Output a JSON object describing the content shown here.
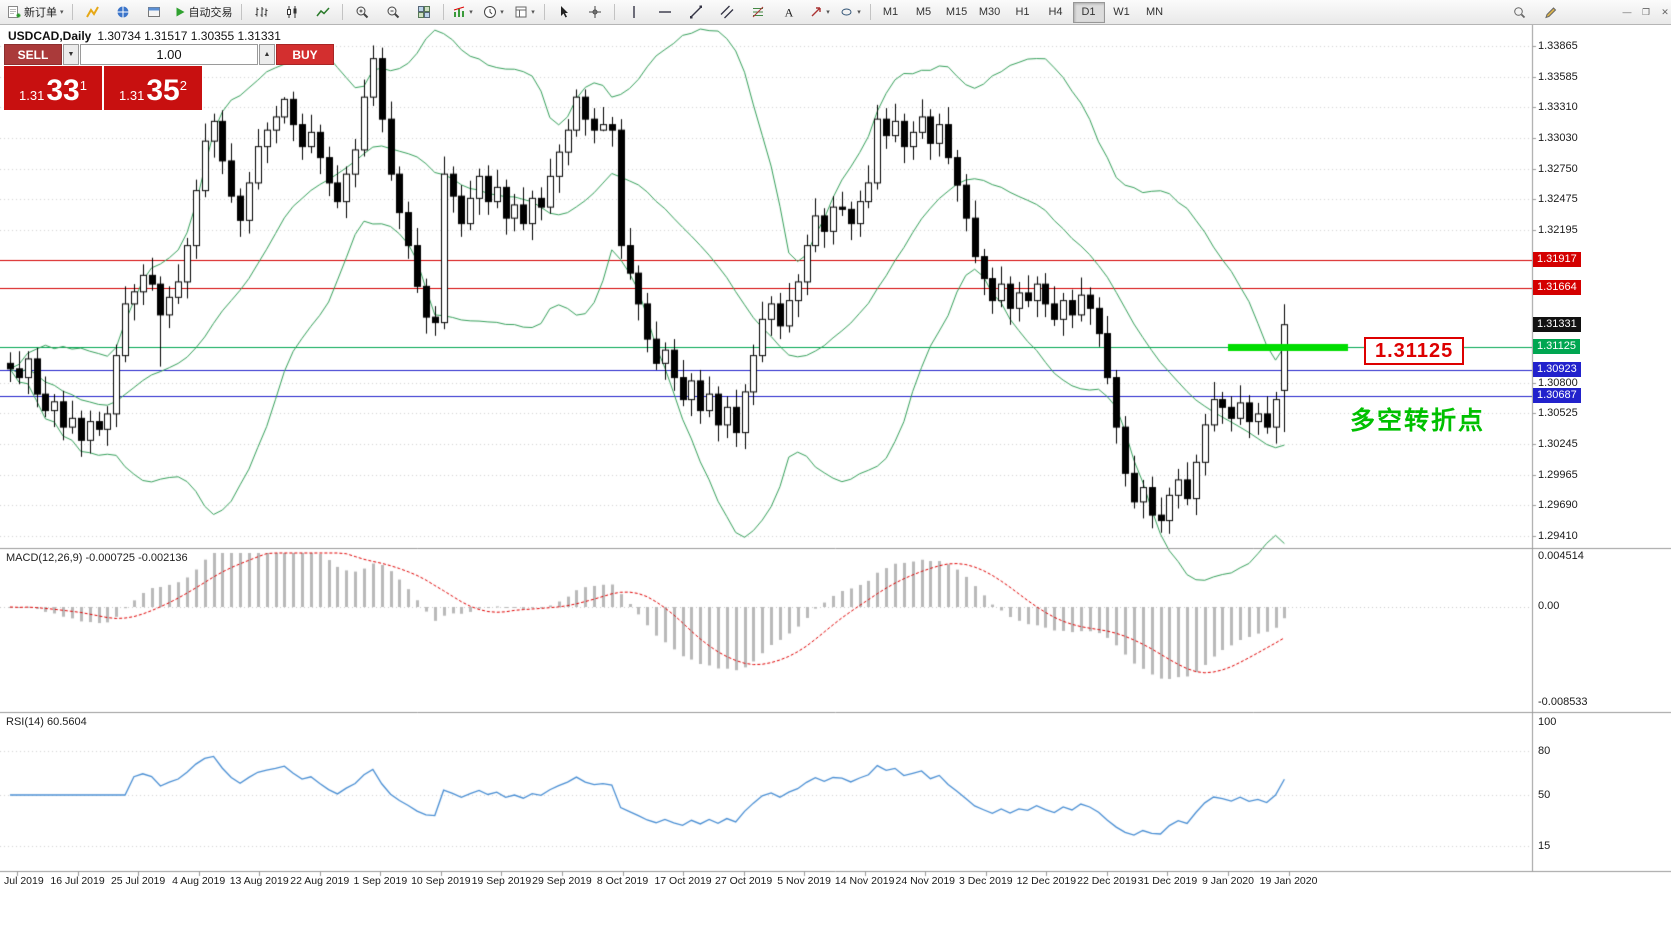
{
  "toolbar": {
    "new_order_label": "新订单",
    "autotrading_label": "自动交易",
    "timeframes": [
      "M1",
      "M5",
      "M15",
      "M30",
      "H1",
      "H4",
      "D1",
      "W1",
      "MN"
    ],
    "active_timeframe": "D1",
    "window_controls": {
      "minimize": "—",
      "restore": "❐",
      "close": "✕"
    }
  },
  "chart": {
    "title_symbol": "USDCAD,Daily",
    "title_ohlc": "1.30734 1.31517 1.30355 1.31331",
    "trade_panel": {
      "sell_label": "SELL",
      "buy_label": "BUY",
      "volume": "1.00",
      "bid_small": "1.31",
      "bid_big": "33",
      "bid_sup": "1",
      "ask_small": "1.31",
      "ask_big": "35",
      "ask_sup": "2"
    },
    "annotations": {
      "level_label": "1.31125",
      "note_text": "多空转折点",
      "highlight_color": "#00dd00",
      "note_color": "#00c000",
      "callout_color": "#dd0000"
    }
  },
  "price_axis": {
    "labels": [
      "1.33865",
      "1.33585",
      "1.33310",
      "1.33030",
      "1.32750",
      "1.32475",
      "1.32195",
      "1.30800",
      "1.30525",
      "1.30245",
      "1.29965",
      "1.29690",
      "1.29410"
    ],
    "tags": [
      {
        "text": "1.31917",
        "color": "#d40000",
        "line": true
      },
      {
        "text": "1.31664",
        "color": "#d40000",
        "line": true
      },
      {
        "text": "1.31331",
        "color": "#111111",
        "line": false
      },
      {
        "text": "1.31125",
        "color": "#00a651",
        "line": true
      },
      {
        "text": "1.30923",
        "color": "#2222cc",
        "line": true
      },
      {
        "text": "1.30687",
        "color": "#2222cc",
        "line": true
      }
    ]
  },
  "macd_panel": {
    "label": "MACD(12,26,9) -0.000725 -0.002136",
    "scale": [
      "0.004514",
      "0.00",
      "-0.008533"
    ]
  },
  "rsi_panel": {
    "label": "RSI(14) 60.5604",
    "scale": [
      "100",
      "80",
      "50",
      "15"
    ]
  },
  "date_axis": [
    "Jul 2019",
    "16 Jul 2019",
    "25 Jul 2019",
    "4 Aug 2019",
    "13 Aug 2019",
    "22 Aug 2019",
    "1 Sep 2019",
    "10 Sep 2019",
    "19 Sep 2019",
    "29 Sep 2019",
    "8 Oct 2019",
    "17 Oct 2019",
    "27 Oct 2019",
    "5 Nov 2019",
    "14 Nov 2019",
    "24 Nov 2019",
    "3 Dec 2019",
    "12 Dec 2019",
    "22 Dec 2019",
    "31 Dec 2019",
    "9 Jan 2020",
    "19 Jan 2020"
  ],
  "chart_data": {
    "type": "candlestick",
    "symbol": "USDCAD",
    "period": "Daily",
    "ohlc_current": {
      "open": 1.30734,
      "high": 1.31517,
      "low": 1.30355,
      "close": 1.31331
    },
    "levels": {
      "resistance": [
        1.31917,
        1.31664
      ],
      "pivot_green": 1.31125,
      "support": [
        1.30923,
        1.30687
      ],
      "current_bid": 1.31331
    },
    "indicators": {
      "bollinger": {
        "period": 20,
        "deviation": 2
      },
      "macd": {
        "fast": 12,
        "slow": 26,
        "signal": 9,
        "current_main": -0.000725,
        "current_signal": -0.002136,
        "scale_top": 0.004514,
        "scale_bottom": -0.008533
      },
      "rsi": {
        "period": 14,
        "current": 60.5604,
        "levels": [
          80,
          50,
          15
        ]
      }
    },
    "price_range_visible": [
      1.2931,
      1.3403
    ],
    "x_tick_labels": [
      "Jul 2019",
      "16 Jul 2019",
      "25 Jul 2019",
      "4 Aug 2019",
      "13 Aug 2019",
      "22 Aug 2019",
      "1 Sep 2019",
      "10 Sep 2019",
      "19 Sep 2019",
      "29 Sep 2019",
      "8 Oct 2019",
      "17 Oct 2019",
      "27 Oct 2019",
      "5 Nov 2019",
      "14 Nov 2019",
      "24 Nov 2019",
      "3 Dec 2019",
      "12 Dec 2019",
      "22 Dec 2019",
      "31 Dec 2019",
      "9 Jan 2020",
      "19 Jan 2020"
    ],
    "candles": [
      [
        1.3098,
        1.3108,
        1.3081,
        1.3093
      ],
      [
        1.3093,
        1.3109,
        1.3079,
        1.3085
      ],
      [
        1.3085,
        1.3109,
        1.307,
        1.3102
      ],
      [
        1.3102,
        1.3112,
        1.3058,
        1.307
      ],
      [
        1.307,
        1.3086,
        1.3049,
        1.3055
      ],
      [
        1.3055,
        1.307,
        1.304,
        1.3063
      ],
      [
        1.3063,
        1.3073,
        1.3028,
        1.304
      ],
      [
        1.304,
        1.3064,
        1.3034,
        1.3048
      ],
      [
        1.3048,
        1.3055,
        1.3013,
        1.3028
      ],
      [
        1.3028,
        1.3055,
        1.3016,
        1.3045
      ],
      [
        1.3045,
        1.3054,
        1.3032,
        1.3038
      ],
      [
        1.3038,
        1.3059,
        1.3023,
        1.3052
      ],
      [
        1.3052,
        1.3115,
        1.304,
        1.3105
      ],
      [
        1.3105,
        1.3168,
        1.3099,
        1.3152
      ],
      [
        1.3152,
        1.317,
        1.3137,
        1.3163
      ],
      [
        1.3163,
        1.3188,
        1.3151,
        1.3178
      ],
      [
        1.3178,
        1.3194,
        1.3164,
        1.317
      ],
      [
        1.317,
        1.3177,
        1.3095,
        1.3142
      ],
      [
        1.3142,
        1.3168,
        1.313,
        1.3158
      ],
      [
        1.3158,
        1.3188,
        1.3152,
        1.3172
      ],
      [
        1.3172,
        1.3212,
        1.3157,
        1.3205
      ],
      [
        1.3205,
        1.3265,
        1.3193,
        1.3255
      ],
      [
        1.3255,
        1.3316,
        1.3249,
        1.33
      ],
      [
        1.33,
        1.3325,
        1.3285,
        1.3318
      ],
      [
        1.3318,
        1.3328,
        1.327,
        1.3282
      ],
      [
        1.3282,
        1.3298,
        1.3244,
        1.325
      ],
      [
        1.325,
        1.3257,
        1.3213,
        1.3228
      ],
      [
        1.3228,
        1.3272,
        1.3216,
        1.3262
      ],
      [
        1.3262,
        1.3311,
        1.3256,
        1.3295
      ],
      [
        1.3295,
        1.3317,
        1.328,
        1.331
      ],
      [
        1.331,
        1.3332,
        1.3298,
        1.3322
      ],
      [
        1.3322,
        1.334,
        1.3316,
        1.3338
      ],
      [
        1.3338,
        1.3345,
        1.33,
        1.3315
      ],
      [
        1.3315,
        1.3325,
        1.3283,
        1.3295
      ],
      [
        1.3295,
        1.3324,
        1.3289,
        1.3308
      ],
      [
        1.3308,
        1.3315,
        1.327,
        1.3285
      ],
      [
        1.3285,
        1.3295,
        1.325,
        1.3262
      ],
      [
        1.3262,
        1.3278,
        1.3239,
        1.3245
      ],
      [
        1.3245,
        1.3277,
        1.323,
        1.327
      ],
      [
        1.327,
        1.3302,
        1.3258,
        1.3292
      ],
      [
        1.3292,
        1.3356,
        1.3286,
        1.334
      ],
      [
        1.334,
        1.3387,
        1.3332,
        1.3375
      ],
      [
        1.3375,
        1.3385,
        1.3308,
        1.332
      ],
      [
        1.332,
        1.3336,
        1.3264,
        1.327
      ],
      [
        1.327,
        1.3277,
        1.322,
        1.3235
      ],
      [
        1.3235,
        1.3245,
        1.3193,
        1.3205
      ],
      [
        1.3205,
        1.3221,
        1.3162,
        1.3168
      ],
      [
        1.3168,
        1.3175,
        1.3125,
        1.314
      ],
      [
        1.314,
        1.315,
        1.3123,
        1.3135
      ],
      [
        1.3135,
        1.3286,
        1.3129,
        1.327
      ],
      [
        1.327,
        1.3277,
        1.3235,
        1.325
      ],
      [
        1.325,
        1.326,
        1.3213,
        1.3225
      ],
      [
        1.3225,
        1.3264,
        1.3219,
        1.3248
      ],
      [
        1.3248,
        1.3275,
        1.3233,
        1.3268
      ],
      [
        1.3268,
        1.3278,
        1.3233,
        1.3245
      ],
      [
        1.3245,
        1.3274,
        1.3239,
        1.3258
      ],
      [
        1.3258,
        1.3265,
        1.3215,
        1.323
      ],
      [
        1.323,
        1.3252,
        1.3218,
        1.3242
      ],
      [
        1.3242,
        1.3258,
        1.3219,
        1.3225
      ],
      [
        1.3225,
        1.3255,
        1.321,
        1.3248
      ],
      [
        1.3248,
        1.3258,
        1.3228,
        1.324
      ],
      [
        1.324,
        1.3284,
        1.3234,
        1.3268
      ],
      [
        1.3268,
        1.3297,
        1.3253,
        1.329
      ],
      [
        1.329,
        1.332,
        1.3278,
        1.331
      ],
      [
        1.331,
        1.3347,
        1.3304,
        1.334
      ],
      [
        1.334,
        1.3347,
        1.3305,
        1.332
      ],
      [
        1.332,
        1.333,
        1.3298,
        1.331
      ],
      [
        1.331,
        1.3331,
        1.3309,
        1.3315
      ],
      [
        1.3315,
        1.3322,
        1.3295,
        1.331
      ],
      [
        1.331,
        1.332,
        1.3193,
        1.3205
      ],
      [
        1.3205,
        1.3221,
        1.3174,
        1.318
      ],
      [
        1.318,
        1.3187,
        1.3137,
        1.3152
      ],
      [
        1.3152,
        1.3162,
        1.3108,
        1.312
      ],
      [
        1.312,
        1.3136,
        1.3092,
        1.3098
      ],
      [
        1.3098,
        1.3117,
        1.3083,
        1.311
      ],
      [
        1.311,
        1.312,
        1.3073,
        1.3085
      ],
      [
        1.3085,
        1.3101,
        1.3059,
        1.3065
      ],
      [
        1.3065,
        1.3089,
        1.305,
        1.3082
      ],
      [
        1.3082,
        1.3092,
        1.3043,
        1.3055
      ],
      [
        1.3055,
        1.3086,
        1.3049,
        1.307
      ],
      [
        1.307,
        1.3077,
        1.3027,
        1.3042
      ],
      [
        1.3042,
        1.3068,
        1.303,
        1.3058
      ],
      [
        1.3058,
        1.3074,
        1.3022,
        1.3035
      ],
      [
        1.3035,
        1.3079,
        1.302,
        1.3072
      ],
      [
        1.3072,
        1.3115,
        1.306,
        1.3105
      ],
      [
        1.3105,
        1.3154,
        1.3099,
        1.3138
      ],
      [
        1.3138,
        1.3159,
        1.3123,
        1.3152
      ],
      [
        1.3152,
        1.3162,
        1.312,
        1.3132
      ],
      [
        1.3132,
        1.3171,
        1.3126,
        1.3155
      ],
      [
        1.3155,
        1.3179,
        1.314,
        1.3172
      ],
      [
        1.3172,
        1.3215,
        1.316,
        1.3205
      ],
      [
        1.3205,
        1.3248,
        1.3199,
        1.3232
      ],
      [
        1.3232,
        1.3239,
        1.3203,
        1.3218
      ],
      [
        1.3218,
        1.325,
        1.3206,
        1.324
      ],
      [
        1.324,
        1.3254,
        1.3232,
        1.3238
      ],
      [
        1.3238,
        1.3245,
        1.321,
        1.3225
      ],
      [
        1.3225,
        1.3255,
        1.3213,
        1.3245
      ],
      [
        1.3245,
        1.3278,
        1.3239,
        1.3262
      ],
      [
        1.3262,
        1.3333,
        1.3256,
        1.332
      ],
      [
        1.332,
        1.333,
        1.3293,
        1.3305
      ],
      [
        1.3305,
        1.3334,
        1.3299,
        1.3318
      ],
      [
        1.3318,
        1.3325,
        1.328,
        1.3295
      ],
      [
        1.3295,
        1.3318,
        1.3283,
        1.3308
      ],
      [
        1.3308,
        1.3338,
        1.3302,
        1.3322
      ],
      [
        1.3322,
        1.3329,
        1.3283,
        1.3298
      ],
      [
        1.3298,
        1.3325,
        1.3286,
        1.3315
      ],
      [
        1.3315,
        1.3331,
        1.3279,
        1.3285
      ],
      [
        1.3285,
        1.3292,
        1.3245,
        1.326
      ],
      [
        1.326,
        1.327,
        1.3218,
        1.323
      ],
      [
        1.323,
        1.3246,
        1.3189,
        1.3195
      ],
      [
        1.3195,
        1.3202,
        1.316,
        1.3175
      ],
      [
        1.3175,
        1.3185,
        1.3143,
        1.3155
      ],
      [
        1.3155,
        1.3186,
        1.3149,
        1.317
      ],
      [
        1.317,
        1.3177,
        1.3133,
        1.3148
      ],
      [
        1.3148,
        1.3172,
        1.3136,
        1.3162
      ],
      [
        1.3162,
        1.3178,
        1.3149,
        1.3155
      ],
      [
        1.3155,
        1.3177,
        1.314,
        1.317
      ],
      [
        1.317,
        1.318,
        1.314,
        1.3152
      ],
      [
        1.3152,
        1.3168,
        1.3132,
        1.3138
      ],
      [
        1.3138,
        1.3162,
        1.3123,
        1.3155
      ],
      [
        1.3155,
        1.3165,
        1.313,
        1.3142
      ],
      [
        1.3142,
        1.3176,
        1.3136,
        1.316
      ],
      [
        1.316,
        1.3167,
        1.3133,
        1.3148
      ],
      [
        1.3148,
        1.3158,
        1.3113,
        1.3125
      ],
      [
        1.3125,
        1.3141,
        1.3079,
        1.3085
      ],
      [
        1.3085,
        1.3092,
        1.3025,
        1.304
      ],
      [
        1.304,
        1.305,
        1.2986,
        1.2998
      ],
      [
        1.2998,
        1.3014,
        1.2966,
        1.2972
      ],
      [
        1.2972,
        1.2992,
        1.2957,
        1.2985
      ],
      [
        1.2985,
        1.2995,
        1.2948,
        1.296
      ],
      [
        1.296,
        1.2976,
        1.2944,
        1.2955
      ],
      [
        1.2955,
        1.2985,
        1.2943,
        1.2978
      ],
      [
        1.2978,
        1.3002,
        1.2966,
        1.2992
      ],
      [
        1.2992,
        1.3008,
        1.2969,
        1.2975
      ],
      [
        1.2975,
        1.3015,
        1.296,
        1.3008
      ],
      [
        1.3008,
        1.3052,
        1.2996,
        1.3042
      ],
      [
        1.3042,
        1.3081,
        1.3036,
        1.3065
      ],
      [
        1.3065,
        1.3072,
        1.3043,
        1.3058
      ],
      [
        1.3058,
        1.3068,
        1.3036,
        1.3048
      ],
      [
        1.3048,
        1.3078,
        1.3042,
        1.3062
      ],
      [
        1.3062,
        1.3069,
        1.303,
        1.3045
      ],
      [
        1.3045,
        1.3062,
        1.3033,
        1.3052
      ],
      [
        1.3052,
        1.3068,
        1.3034,
        1.304
      ],
      [
        1.304,
        1.3072,
        1.3025,
        1.3065
      ],
      [
        1.30734,
        1.31517,
        1.30355,
        1.31331
      ]
    ]
  }
}
